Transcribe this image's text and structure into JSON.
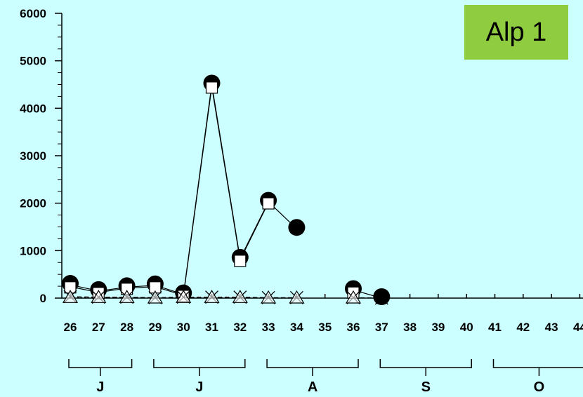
{
  "badge": {
    "label": "Alp 1"
  },
  "chart_data": {
    "type": "line",
    "title": "",
    "xlabel": "",
    "ylabel": "",
    "ylim": [
      0,
      6000
    ],
    "yticks": [
      0,
      1000,
      2000,
      3000,
      4000,
      5000,
      6000
    ],
    "categories": [
      "26",
      "27",
      "28",
      "29",
      "30",
      "31",
      "32",
      "33",
      "34",
      "35",
      "36",
      "37",
      "38",
      "39",
      "40",
      "41",
      "42",
      "43",
      "44"
    ],
    "month_groups": [
      {
        "label": "J",
        "from": "26",
        "to": "28"
      },
      {
        "label": "J",
        "from": "29",
        "to": "32"
      },
      {
        "label": "A",
        "from": "33",
        "to": "36"
      },
      {
        "label": "S",
        "from": "37",
        "to": "40"
      },
      {
        "label": "O",
        "from": "41",
        "to": "44"
      }
    ],
    "series": [
      {
        "marker": "circle-filled",
        "line": "solid",
        "values": [
          280,
          150,
          230,
          270,
          80,
          4500,
          830,
          2030,
          1460,
          null,
          170,
          0,
          null,
          null,
          null,
          null,
          null,
          null,
          null
        ]
      },
      {
        "marker": "square-open",
        "line": "solid",
        "values": [
          240,
          120,
          210,
          240,
          60,
          4450,
          800,
          2010,
          null,
          null,
          130,
          null,
          null,
          null,
          null,
          null,
          null,
          null,
          null
        ]
      },
      {
        "marker": "x",
        "line": "dashed",
        "values": [
          30,
          20,
          20,
          10,
          20,
          20,
          20,
          10,
          10,
          null,
          10,
          0,
          null,
          null,
          null,
          null,
          null,
          null,
          null
        ]
      },
      {
        "marker": "triangle-open",
        "line": "dotted",
        "values": [
          10,
          10,
          10,
          0,
          10,
          10,
          10,
          0,
          0,
          null,
          0,
          null,
          null,
          null,
          null,
          null,
          null,
          null,
          null
        ]
      }
    ],
    "grid": false,
    "legend": "none",
    "colors": {
      "background": "#ccffff",
      "badge": "#8fcc3f",
      "ink": "#000000"
    }
  }
}
